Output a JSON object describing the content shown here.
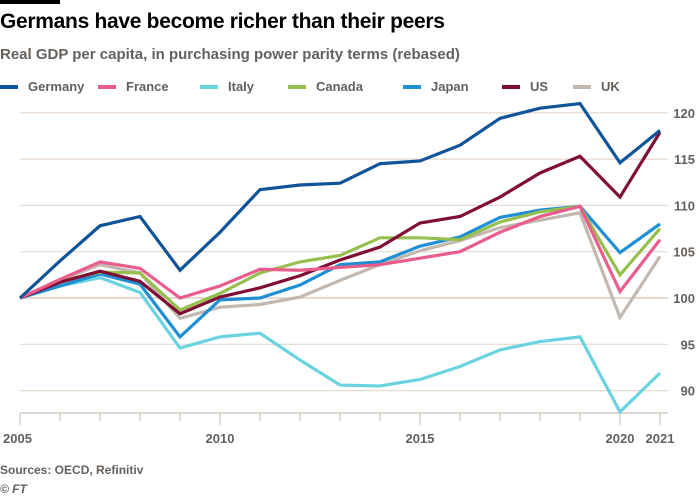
{
  "header": {
    "title": "Germans have become richer than their peers",
    "subtitle": "Real GDP per capita, in purchasing power parity terms (rebased)"
  },
  "footer": {
    "sources": "Sources: OECD, Refinitiv",
    "copyright": "© FT"
  },
  "chart_data": {
    "type": "line",
    "title": "Germans have become richer than their peers",
    "subtitle": "Real GDP per capita, in purchasing power parity terms (rebased)",
    "xlabel": "",
    "ylabel": "",
    "x": [
      2005,
      2006,
      2007,
      2008,
      2009,
      2010,
      2011,
      2012,
      2013,
      2014,
      2015,
      2016,
      2017,
      2018,
      2019,
      2020,
      2021
    ],
    "x_tick_labels": [
      "2005",
      "2010",
      "2015",
      "2020",
      "2021"
    ],
    "x_tick_values": [
      2005,
      2010,
      2015,
      2020,
      2021
    ],
    "xlim": [
      2005,
      2021
    ],
    "y_tick_labels": [
      "90",
      "95",
      "100",
      "105",
      "110",
      "115",
      "120"
    ],
    "y_tick_values": [
      90,
      95,
      100,
      105,
      110,
      115,
      120
    ],
    "ylim": [
      87.5,
      122
    ],
    "y_axis_side": "right",
    "grid": true,
    "legend_position": "top",
    "series": [
      {
        "name": "Germany",
        "color": "#0f5499",
        "values": [
          100,
          104.0,
          107.8,
          108.8,
          103.0,
          107.1,
          111.7,
          112.2,
          112.4,
          114.5,
          114.8,
          116.5,
          119.4,
          120.5,
          121.0,
          114.6,
          118.1
        ]
      },
      {
        "name": "France",
        "color": "#e95d8c",
        "values": [
          100,
          102.0,
          103.9,
          103.2,
          100.0,
          101.3,
          103.1,
          103.0,
          103.3,
          103.6,
          104.3,
          105.0,
          107.1,
          108.8,
          109.9,
          100.7,
          106.3
        ]
      },
      {
        "name": "Italy",
        "color": "#6bd3e0",
        "values": [
          100,
          101.3,
          102.2,
          100.6,
          94.6,
          95.8,
          96.2,
          93.3,
          90.6,
          90.5,
          91.2,
          92.6,
          94.4,
          95.3,
          95.8,
          87.7,
          91.9
        ]
      },
      {
        "name": "Canada",
        "color": "#96bf4f",
        "values": [
          100,
          101.8,
          102.8,
          102.7,
          98.7,
          100.5,
          102.7,
          103.9,
          104.6,
          106.5,
          106.5,
          106.3,
          108.2,
          109.3,
          109.9,
          102.5,
          107.5
        ]
      },
      {
        "name": "Japan",
        "color": "#1e8fd5",
        "values": [
          100,
          101.3,
          102.6,
          101.5,
          95.8,
          99.8,
          100.0,
          101.4,
          103.6,
          103.9,
          105.6,
          106.6,
          108.7,
          109.5,
          109.9,
          104.9,
          108.0
        ]
      },
      {
        "name": "US",
        "color": "#800d33",
        "values": [
          100,
          101.7,
          102.9,
          101.8,
          98.3,
          100.1,
          101.1,
          102.4,
          104.1,
          105.5,
          108.1,
          108.8,
          110.9,
          113.5,
          115.3,
          110.9,
          117.9
        ]
      },
      {
        "name": "UK",
        "color": "#c2b8b0",
        "values": [
          100,
          101.9,
          103.6,
          102.7,
          97.8,
          99.0,
          99.3,
          100.1,
          101.9,
          103.6,
          105.1,
          106.2,
          107.6,
          108.4,
          109.2,
          97.9,
          104.5
        ]
      }
    ]
  },
  "style": {
    "gridline_color": "#e6d9ce",
    "axis_color": "#ccc1b7",
    "label_color": "#66605c"
  }
}
